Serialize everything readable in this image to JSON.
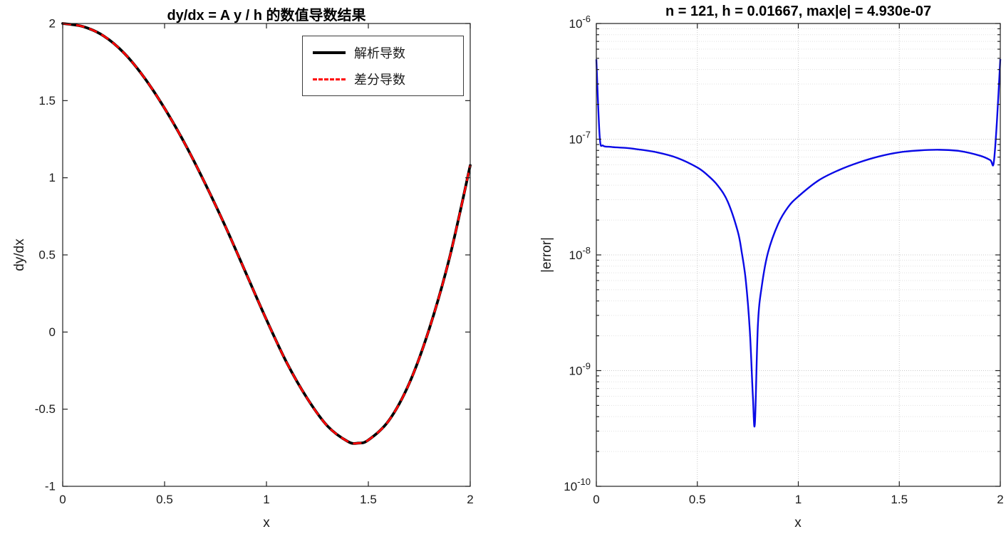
{
  "figure": {
    "background": "#ffffff"
  },
  "chart_data": [
    {
      "type": "line",
      "title": "dy/dx = A y / h 的数值导数结果",
      "xlabel": "x",
      "ylabel": "dy/dx",
      "xlim": [
        0,
        2
      ],
      "ylim": [
        -1,
        2
      ],
      "xticks": [
        0,
        0.5,
        1,
        1.5,
        2
      ],
      "xtick_labels": [
        "0",
        "0.5",
        "1",
        "1.5",
        "2"
      ],
      "yticks": [
        -1,
        -0.5,
        0,
        0.5,
        1,
        1.5,
        2
      ],
      "ytick_labels": [
        "-1",
        "-0.5",
        "0",
        "0.5",
        "1",
        "1.5",
        "2"
      ],
      "grid": false,
      "legend_position": "northeast",
      "x": [
        0,
        0.1,
        0.2,
        0.3,
        0.4,
        0.5,
        0.6,
        0.7,
        0.8,
        0.9,
        1.0,
        1.1,
        1.2,
        1.3,
        1.4,
        1.45,
        1.5,
        1.6,
        1.7,
        1.8,
        1.9,
        2.0
      ],
      "series": [
        {
          "name": "解析导数",
          "color": "#000000",
          "line_style": "solid",
          "line_width": 3.8,
          "values": [
            2.0,
            1.98,
            1.92,
            1.81,
            1.65,
            1.45,
            1.22,
            0.96,
            0.68,
            0.38,
            0.08,
            -0.2,
            -0.43,
            -0.61,
            -0.71,
            -0.72,
            -0.7,
            -0.575,
            -0.335,
            0.025,
            0.49,
            1.08
          ]
        },
        {
          "name": "差分导数",
          "color": "#ff0000",
          "line_style": "dashed",
          "line_width": 2.8,
          "values": [
            2.0,
            1.98,
            1.92,
            1.81,
            1.65,
            1.45,
            1.22,
            0.96,
            0.68,
            0.38,
            0.08,
            -0.2,
            -0.43,
            -0.61,
            -0.71,
            -0.72,
            -0.7,
            -0.575,
            -0.335,
            0.025,
            0.49,
            1.08
          ]
        }
      ]
    },
    {
      "type": "line",
      "title": "n = 121, h = 0.01667, max|e| = 4.930e-07",
      "xlabel": "x",
      "ylabel": "|error|",
      "xlim": [
        0,
        2
      ],
      "yscale": "log",
      "ylim": [
        1e-10,
        1e-06
      ],
      "xticks": [
        0,
        0.5,
        1,
        1.5,
        2
      ],
      "xtick_labels": [
        "0",
        "0.5",
        "1",
        "1.5",
        "2"
      ],
      "ytick_exponents": [
        -10,
        -9,
        -8,
        -7,
        -6
      ],
      "grid": true,
      "minor_grid": true,
      "annotations": {
        "n": "121",
        "h": "0.01667",
        "max_abs_error": "4.930e-07"
      },
      "series": [
        {
          "name": "|error|",
          "color": "#0a0ae6",
          "line_style": "solid",
          "line_width": 2.4,
          "x": [
            0,
            0.0167,
            0.033,
            0.067,
            0.1,
            0.15,
            0.2,
            0.3,
            0.4,
            0.5,
            0.55,
            0.6,
            0.65,
            0.7,
            0.72,
            0.74,
            0.76,
            0.775,
            0.785,
            0.8,
            0.82,
            0.85,
            0.9,
            0.95,
            1.0,
            1.1,
            1.2,
            1.3,
            1.4,
            1.5,
            1.6,
            1.7,
            1.8,
            1.9,
            1.95,
            1.967,
            1.983,
            2.0
          ],
          "values": [
            4.9e-07,
            1.05e-07,
            8.8e-08,
            8.6e-08,
            8.5e-08,
            8.4e-08,
            8.2e-08,
            7.7e-08,
            6.9e-08,
            5.7e-08,
            4.9e-08,
            4e-08,
            2.9e-08,
            1.6e-08,
            1.05e-08,
            6e-09,
            2.2e-09,
            6e-10,
            3.5e-10,
            2.5e-09,
            5.5e-09,
            1.05e-08,
            1.85e-08,
            2.6e-08,
            3.2e-08,
            4.4e-08,
            5.4e-08,
            6.3e-08,
            7.1e-08,
            7.7e-08,
            8e-08,
            8.1e-08,
            7.9e-08,
            7.2e-08,
            6.6e-08,
            6.2e-08,
            1.4e-07,
            4.93e-07
          ]
        }
      ]
    }
  ]
}
